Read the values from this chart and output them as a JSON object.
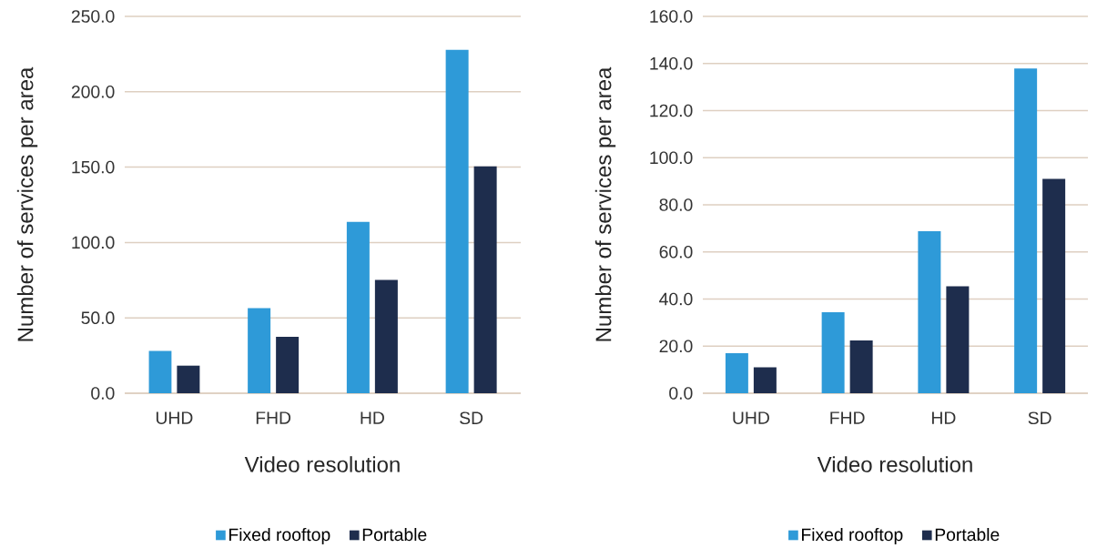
{
  "chart_data": [
    {
      "type": "bar",
      "xlabel": "Video resolution",
      "ylabel": "Number of services per area",
      "categories": [
        "UHD",
        "FHD",
        "HD",
        "SD"
      ],
      "series": [
        {
          "name": "Fixed rooftop",
          "color": "#2e9ad8",
          "values": [
            28,
            56.4,
            113.6,
            227.8
          ]
        },
        {
          "name": "Portable",
          "color": "#1e2d4d",
          "values": [
            18.3,
            37.5,
            75.2,
            150.5
          ]
        }
      ],
      "ylim": [
        0,
        250
      ],
      "yticks": [
        {
          "value": 0,
          "label": "0.0"
        },
        {
          "value": 50,
          "label": "50.0"
        },
        {
          "value": 100,
          "label": "100.0"
        },
        {
          "value": 150,
          "label": "150.0"
        },
        {
          "value": 200,
          "label": "200.0"
        },
        {
          "value": 250,
          "label": "250.0"
        }
      ],
      "grid": "y",
      "legend": "bottom"
    },
    {
      "type": "bar",
      "xlabel": "Video resolution",
      "ylabel": "Number of services per area",
      "categories": [
        "UHD",
        "FHD",
        "HD",
        "SD"
      ],
      "series": [
        {
          "name": "Fixed rooftop",
          "color": "#2e9ad8",
          "values": [
            17,
            34.4,
            68.8,
            137.9
          ]
        },
        {
          "name": "Portable",
          "color": "#1e2d4d",
          "values": [
            11,
            22.4,
            45.4,
            91
          ]
        }
      ],
      "ylim": [
        0,
        160
      ],
      "yticks": [
        {
          "value": 0,
          "label": "0.0"
        },
        {
          "value": 20,
          "label": "20.0"
        },
        {
          "value": 40,
          "label": "40.0"
        },
        {
          "value": 60,
          "label": "60.0"
        },
        {
          "value": 80,
          "label": "80.0"
        },
        {
          "value": 100,
          "label": "100.0"
        },
        {
          "value": 120,
          "label": "120.0"
        },
        {
          "value": 140,
          "label": "140.0"
        },
        {
          "value": 160,
          "label": "160.0"
        }
      ],
      "grid": "y",
      "legend": "bottom"
    }
  ]
}
